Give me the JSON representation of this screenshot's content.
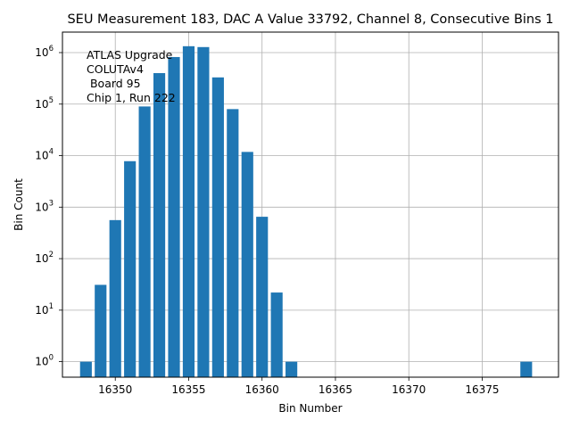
{
  "chart_data": {
    "type": "bar",
    "title": "SEU Measurement 183, DAC A Value 33792, Channel 8, Consecutive Bins 1",
    "xlabel": "Bin Number",
    "ylabel": "Bin Count",
    "yscale": "log",
    "grid": true,
    "bar_color": "#1f77b4",
    "x": [
      16348,
      16349,
      16350,
      16351,
      16352,
      16353,
      16354,
      16355,
      16356,
      16357,
      16358,
      16359,
      16360,
      16361,
      16362,
      16378
    ],
    "values": [
      1,
      31,
      560,
      7800,
      90000,
      400000,
      820000,
      1330000,
      1280000,
      330000,
      80000,
      11800,
      650,
      22,
      1,
      1
    ],
    "xlim": [
      16346.4,
      16380.2
    ],
    "ylim": [
      0.5,
      2500000
    ],
    "x_ticks": [
      16350,
      16355,
      16360,
      16365,
      16370,
      16375
    ],
    "y_ticks": [
      {
        "value": 1,
        "mantissa": "10",
        "exp": "0"
      },
      {
        "value": 10,
        "mantissa": "10",
        "exp": "1"
      },
      {
        "value": 100,
        "mantissa": "10",
        "exp": "2"
      },
      {
        "value": 1000,
        "mantissa": "10",
        "exp": "3"
      },
      {
        "value": 10000,
        "mantissa": "10",
        "exp": "4"
      },
      {
        "value": 100000,
        "mantissa": "10",
        "exp": "5"
      },
      {
        "value": 1000000,
        "mantissa": "10",
        "exp": "6"
      }
    ],
    "annotation": [
      "ATLAS Upgrade",
      "COLUTAv4",
      " Board 95",
      "Chip 1, Run 222"
    ]
  }
}
